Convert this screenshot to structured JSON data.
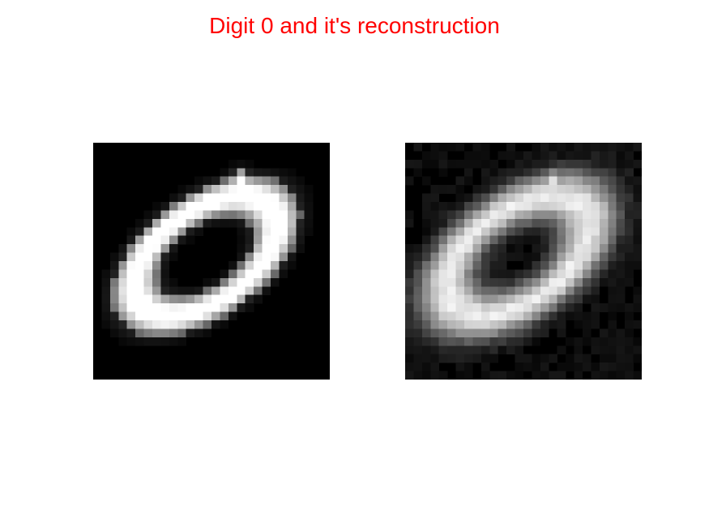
{
  "figure": {
    "title": "Digit 0 and it's reconstruction",
    "title_color": "#ff0000",
    "background_color": "#ffffff"
  },
  "images": [
    {
      "role": "original",
      "icon": "digit-zero-image",
      "style": "sharp"
    },
    {
      "role": "reconstruction",
      "icon": "digit-zero-image",
      "style": "blurred"
    }
  ]
}
